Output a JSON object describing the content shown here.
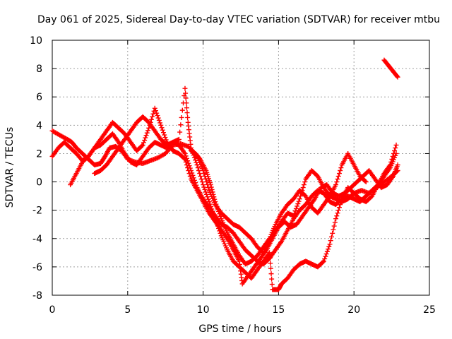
{
  "chart_data": {
    "type": "scatter",
    "title": "Day 061 of 2025, Sidereal Day-to-day VTEC variation (SDTVAR) for receiver mtbu",
    "xlabel": "GPS time / hours",
    "ylabel": "SDTVAR / TECUs",
    "xlim": [
      0,
      25
    ],
    "ylim": [
      -8,
      10
    ],
    "xticks": [
      "0",
      "5",
      "10",
      "15",
      "20",
      "25"
    ],
    "yticks": [
      "-8",
      "-6",
      "-4",
      "-2",
      "0",
      "2",
      "4",
      "6",
      "8",
      "10"
    ],
    "grid": true,
    "marker": "+",
    "color": "#ff0000",
    "series": [
      {
        "values": [
          [
            0.0,
            3.6
          ],
          [
            0.5,
            3.3
          ],
          [
            1.0,
            3.0
          ],
          [
            1.3,
            2.8
          ],
          [
            1.6,
            2.4
          ],
          [
            2.0,
            2.0
          ],
          [
            2.4,
            1.6
          ],
          [
            2.8,
            1.2
          ],
          [
            3.2,
            1.3
          ],
          [
            3.5,
            1.8
          ],
          [
            3.8,
            2.4
          ],
          [
            4.2,
            2.5
          ],
          [
            4.6,
            2.2
          ],
          [
            5.0,
            1.6
          ],
          [
            5.5,
            1.4
          ],
          [
            6.0,
            1.3
          ],
          [
            6.5,
            1.5
          ],
          [
            7.0,
            1.7
          ],
          [
            7.5,
            2.0
          ],
          [
            8.0,
            2.6
          ],
          [
            8.5,
            2.7
          ],
          [
            9.0,
            2.5
          ],
          [
            9.5,
            2.0
          ],
          [
            9.8,
            1.6
          ],
          [
            10.2,
            0.8
          ],
          [
            10.5,
            -0.2
          ],
          [
            10.8,
            -1.4
          ],
          [
            11.2,
            -2.6
          ],
          [
            11.6,
            -3.6
          ],
          [
            12.0,
            -4.4
          ],
          [
            12.4,
            -5.2
          ],
          [
            12.8,
            -5.8
          ],
          [
            13.2,
            -5.6
          ],
          [
            13.6,
            -5.2
          ],
          [
            14.0,
            -4.6
          ],
          [
            14.4,
            -4.0
          ],
          [
            14.8,
            -3.0
          ],
          [
            15.2,
            -2.2
          ],
          [
            15.6,
            -1.6
          ],
          [
            16.0,
            -1.2
          ],
          [
            16.4,
            -0.6
          ],
          [
            16.8,
            -1.0
          ],
          [
            17.2,
            -1.8
          ],
          [
            17.6,
            -2.2
          ],
          [
            18.0,
            -1.6
          ],
          [
            18.4,
            -1.0
          ],
          [
            18.8,
            -1.2
          ],
          [
            19.2,
            -1.4
          ],
          [
            19.6,
            -1.2
          ],
          [
            20.0,
            -0.8
          ],
          [
            20.5,
            -0.6
          ],
          [
            21.0,
            -0.8
          ],
          [
            21.5,
            -0.4
          ],
          [
            22.0,
            0.0
          ],
          [
            22.5,
            0.4
          ],
          [
            22.9,
            0.8
          ]
        ]
      },
      {
        "values": [
          [
            0.0,
            1.8
          ],
          [
            0.4,
            2.4
          ],
          [
            0.8,
            2.8
          ],
          [
            1.2,
            2.4
          ],
          [
            1.6,
            2.0
          ],
          [
            2.0,
            1.5
          ],
          [
            2.4,
            1.8
          ],
          [
            2.8,
            2.4
          ],
          [
            3.2,
            2.6
          ],
          [
            3.6,
            3.0
          ],
          [
            4.0,
            3.4
          ],
          [
            4.4,
            2.8
          ],
          [
            4.8,
            2.0
          ],
          [
            5.2,
            1.4
          ],
          [
            5.6,
            1.2
          ],
          [
            6.0,
            1.8
          ],
          [
            6.4,
            2.4
          ],
          [
            6.8,
            2.8
          ],
          [
            7.2,
            2.6
          ],
          [
            7.6,
            2.4
          ],
          [
            8.0,
            2.8
          ],
          [
            8.4,
            2.6
          ],
          [
            8.8,
            2.0
          ],
          [
            9.2,
            0.8
          ],
          [
            9.6,
            -0.4
          ],
          [
            10.0,
            -1.2
          ],
          [
            10.4,
            -1.8
          ],
          [
            10.8,
            -2.4
          ],
          [
            11.2,
            -3.0
          ],
          [
            11.6,
            -3.2
          ],
          [
            12.0,
            -3.6
          ],
          [
            12.4,
            -4.2
          ],
          [
            12.8,
            -4.8
          ],
          [
            13.2,
            -5.2
          ],
          [
            13.6,
            -5.6
          ],
          [
            14.0,
            -5.8
          ],
          [
            14.4,
            -5.4
          ],
          [
            14.8,
            -4.8
          ],
          [
            15.2,
            -4.2
          ],
          [
            15.6,
            -3.4
          ],
          [
            16.0,
            -2.6
          ],
          [
            16.4,
            -2.0
          ],
          [
            16.8,
            -1.6
          ],
          [
            17.2,
            -1.0
          ],
          [
            17.6,
            -0.6
          ],
          [
            18.0,
            -0.8
          ],
          [
            18.4,
            -1.4
          ],
          [
            18.8,
            -1.6
          ],
          [
            19.2,
            -1.2
          ],
          [
            19.6,
            -1.0
          ],
          [
            20.0,
            -1.2
          ],
          [
            20.4,
            -1.4
          ],
          [
            20.8,
            -1.0
          ],
          [
            21.2,
            -0.6
          ],
          [
            21.6,
            -0.2
          ],
          [
            22.0,
            0.4
          ],
          [
            22.4,
            1.0
          ],
          [
            22.8,
            2.0
          ]
        ]
      },
      {
        "values": [
          [
            1.2,
            -0.2
          ],
          [
            1.6,
            0.6
          ],
          [
            2.0,
            1.4
          ],
          [
            2.4,
            1.8
          ],
          [
            2.8,
            2.4
          ],
          [
            3.2,
            3.0
          ],
          [
            3.6,
            3.6
          ],
          [
            4.0,
            4.2
          ],
          [
            4.4,
            3.8
          ],
          [
            4.8,
            3.4
          ],
          [
            5.2,
            2.8
          ],
          [
            5.6,
            2.2
          ],
          [
            6.0,
            2.6
          ],
          [
            6.4,
            3.8
          ],
          [
            6.8,
            5.2
          ],
          [
            7.2,
            4.0
          ],
          [
            7.6,
            2.8
          ],
          [
            8.0,
            2.2
          ],
          [
            8.4,
            2.0
          ],
          [
            8.8,
            1.6
          ],
          [
            9.2,
            0.2
          ],
          [
            9.6,
            -0.6
          ],
          [
            10.0,
            -1.4
          ],
          [
            10.4,
            -2.2
          ],
          [
            10.8,
            -2.8
          ],
          [
            11.2,
            -3.4
          ],
          [
            11.6,
            -4.0
          ],
          [
            12.0,
            -4.8
          ],
          [
            12.4,
            -5.6
          ],
          [
            12.6,
            -7.2
          ],
          [
            13.0,
            -6.6
          ],
          [
            13.4,
            -6.0
          ],
          [
            13.8,
            -5.4
          ],
          [
            14.2,
            -4.8
          ],
          [
            14.6,
            -4.0
          ],
          [
            15.0,
            -3.2
          ],
          [
            15.4,
            -2.8
          ],
          [
            15.8,
            -3.2
          ],
          [
            16.2,
            -3.0
          ],
          [
            16.6,
            -2.4
          ],
          [
            17.0,
            -1.8
          ],
          [
            17.4,
            -1.2
          ],
          [
            17.8,
            -0.4
          ],
          [
            18.2,
            -0.2
          ],
          [
            18.6,
            -0.8
          ],
          [
            19.0,
            -1.0
          ],
          [
            19.4,
            -0.8
          ],
          [
            19.8,
            -0.4
          ],
          [
            20.2,
            0.0
          ],
          [
            20.6,
            0.4
          ],
          [
            21.0,
            0.8
          ],
          [
            21.4,
            0.2
          ],
          [
            21.8,
            -0.4
          ],
          [
            22.2,
            -0.2
          ],
          [
            22.6,
            0.4
          ],
          [
            22.9,
            1.2
          ]
        ]
      },
      {
        "values": [
          [
            2.8,
            0.6
          ],
          [
            3.2,
            0.8
          ],
          [
            3.6,
            1.2
          ],
          [
            4.0,
            1.8
          ],
          [
            4.4,
            2.4
          ],
          [
            4.8,
            3.0
          ],
          [
            5.2,
            3.6
          ],
          [
            5.6,
            4.2
          ],
          [
            6.0,
            4.6
          ],
          [
            6.4,
            4.2
          ],
          [
            6.8,
            3.6
          ],
          [
            7.2,
            3.0
          ],
          [
            7.6,
            2.6
          ],
          [
            8.0,
            2.8
          ],
          [
            8.4,
            3.0
          ],
          [
            8.8,
            6.6
          ],
          [
            9.0,
            4.2
          ],
          [
            9.2,
            2.4
          ],
          [
            9.6,
            1.2
          ],
          [
            10.0,
            -0.2
          ],
          [
            10.4,
            -1.4
          ],
          [
            10.8,
            -2.6
          ],
          [
            11.2,
            -3.8
          ],
          [
            11.6,
            -4.8
          ],
          [
            12.0,
            -5.6
          ],
          [
            12.4,
            -6.0
          ],
          [
            12.8,
            -6.4
          ],
          [
            13.2,
            -6.8
          ],
          [
            13.6,
            -6.2
          ],
          [
            14.0,
            -5.6
          ],
          [
            14.4,
            -5.0
          ],
          [
            14.6,
            -7.6
          ],
          [
            15.0,
            -7.6
          ],
          [
            15.2,
            -7.2
          ],
          [
            15.6,
            -6.8
          ],
          [
            16.0,
            -6.2
          ],
          [
            16.4,
            -5.8
          ],
          [
            16.8,
            -5.6
          ],
          [
            17.2,
            -5.8
          ],
          [
            17.6,
            -6.0
          ],
          [
            18.0,
            -5.6
          ],
          [
            18.4,
            -4.4
          ],
          [
            18.8,
            -2.6
          ],
          [
            19.2,
            -1.2
          ],
          [
            19.6,
            -0.4
          ],
          [
            20.0,
            -0.8
          ],
          [
            20.4,
            -1.2
          ],
          [
            20.8,
            -1.4
          ],
          [
            21.2,
            -1.0
          ],
          [
            21.6,
            -0.2
          ],
          [
            22.0,
            0.6
          ],
          [
            22.4,
            1.2
          ],
          [
            22.8,
            2.6
          ]
        ]
      },
      {
        "values": [
          [
            9.2,
            2.2
          ],
          [
            9.6,
            1.8
          ],
          [
            10.0,
            0.8
          ],
          [
            10.4,
            -0.6
          ],
          [
            10.8,
            -1.6
          ],
          [
            11.2,
            -2.2
          ],
          [
            11.6,
            -2.6
          ],
          [
            12.0,
            -3.0
          ],
          [
            12.4,
            -3.2
          ],
          [
            12.8,
            -3.6
          ],
          [
            13.2,
            -4.0
          ],
          [
            13.6,
            -4.6
          ],
          [
            14.0,
            -5.0
          ],
          [
            14.4,
            -4.2
          ],
          [
            14.8,
            -3.4
          ],
          [
            15.2,
            -2.8
          ],
          [
            15.6,
            -2.2
          ],
          [
            16.0,
            -2.4
          ],
          [
            16.4,
            -1.2
          ],
          [
            16.8,
            0.2
          ],
          [
            17.2,
            0.8
          ],
          [
            17.6,
            0.4
          ],
          [
            18.0,
            -0.4
          ],
          [
            18.4,
            -1.0
          ],
          [
            18.8,
            -0.2
          ],
          [
            19.2,
            1.2
          ],
          [
            19.6,
            2.0
          ],
          [
            20.0,
            1.2
          ],
          [
            20.4,
            0.4
          ],
          [
            20.8,
            0.0
          ]
        ]
      },
      {
        "values": [
          [
            22.0,
            8.6
          ],
          [
            22.3,
            8.2
          ],
          [
            22.6,
            7.8
          ],
          [
            22.9,
            7.4
          ]
        ]
      }
    ]
  }
}
